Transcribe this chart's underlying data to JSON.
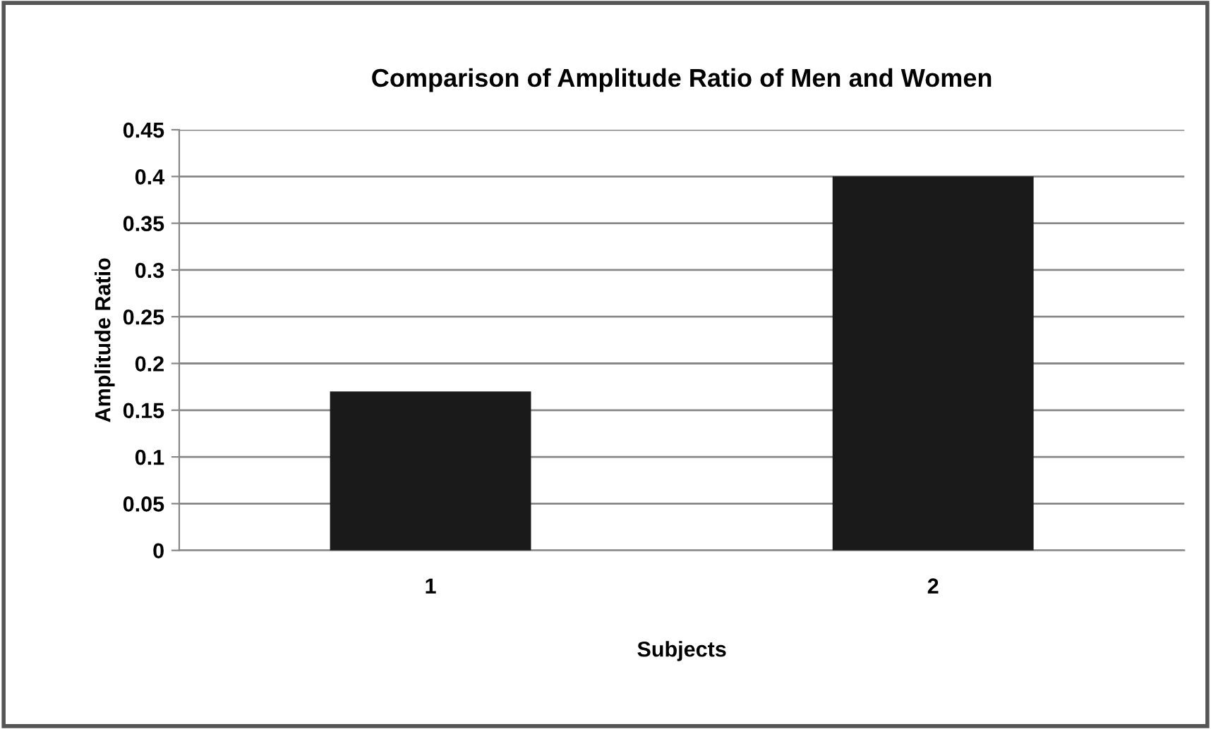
{
  "chart_data": {
    "type": "bar",
    "title": "Comparison of Amplitude Ratio of Men and Women",
    "xlabel": "Subjects",
    "ylabel": "Amplitude Ratio",
    "categories": [
      "1",
      "2"
    ],
    "values": [
      0.17,
      0.4
    ],
    "color": "#1a1a1a",
    "ylim": [
      0,
      0.45
    ],
    "yticks": [
      0,
      {
        "value": 0.05,
        "label": "0.05"
      },
      {
        "value": 0.1,
        "label": "0.1"
      },
      {
        "value": 0.15,
        "label": "0.15"
      },
      {
        "value": 0.2,
        "label": "0.2"
      },
      {
        "value": 0.25,
        "label": "0.25"
      },
      {
        "value": 0.3,
        "label": "0.3"
      },
      {
        "value": 0.35,
        "label": "0.35"
      },
      {
        "value": 0.4,
        "label": "0.4"
      },
      {
        "value": 0.45,
        "label": "0.45"
      }
    ],
    "grid": "y",
    "legend": false
  }
}
